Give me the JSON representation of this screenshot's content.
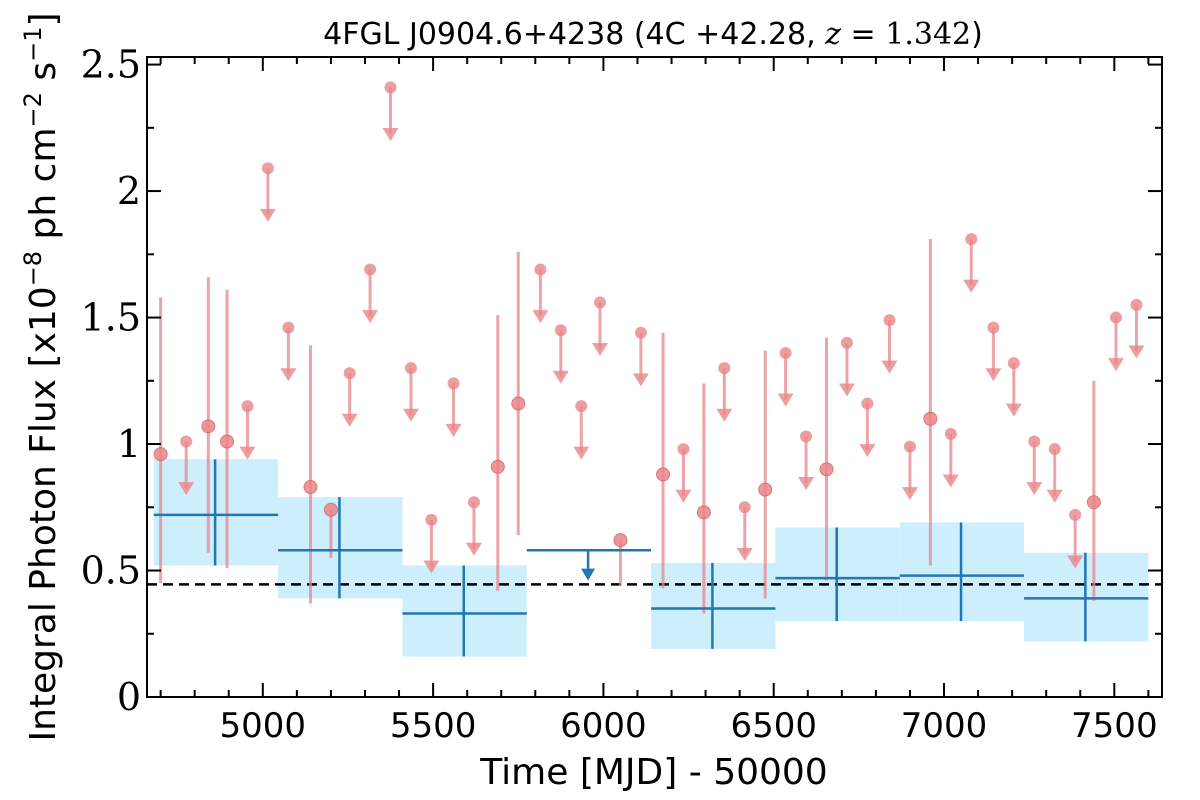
{
  "chart_data": {
    "type": "scatter",
    "title": "4FGL J0904.6+4238 (4C +42.28, z = 1.342)",
    "xlabel": "Time [MJD] - 50000",
    "ylabel": "Integral Photon Flux [x10^-8 ph cm^-2 s^-1]",
    "xlim": [
      4660,
      7640
    ],
    "ylim": [
      0,
      2.53
    ],
    "x_ticks": [
      5000,
      5500,
      6000,
      6500,
      7000,
      7500
    ],
    "y_ticks": [
      0,
      0.5,
      1,
      1.5,
      2,
      2.5
    ],
    "y_tick_labels": [
      "0",
      "0.5",
      "1",
      "1.5",
      "2",
      "2.5"
    ],
    "grid": false,
    "reference_line": {
      "y": 0.445,
      "style": "dashed",
      "color": "#000000"
    },
    "colors": {
      "short_bins": "#e8868a",
      "long_bins": "#1f77b4",
      "long_bins_band": "#cdeefc"
    },
    "series": [
      {
        "kind": "short-bin detections",
        "points": [
          {
            "x": 4700,
            "y": 0.96,
            "lo": 0.45,
            "hi": 1.58
          },
          {
            "x": 4840,
            "y": 1.07,
            "lo": 0.57,
            "hi": 1.66
          },
          {
            "x": 4895,
            "y": 1.01,
            "lo": 0.51,
            "hi": 1.61
          },
          {
            "x": 5140,
            "y": 0.83,
            "lo": 0.37,
            "hi": 1.39
          },
          {
            "x": 5200,
            "y": 0.74,
            "lo": 0.55,
            "hi": 0.74
          },
          {
            "x": 5690,
            "y": 0.91,
            "lo": 0.42,
            "hi": 1.51
          },
          {
            "x": 5750,
            "y": 1.16,
            "lo": 0.64,
            "hi": 1.76
          },
          {
            "x": 6050,
            "y": 0.62,
            "lo": 0.44,
            "hi": 0.62
          },
          {
            "x": 6175,
            "y": 0.88,
            "lo": 0.43,
            "hi": 1.44
          },
          {
            "x": 6295,
            "y": 0.73,
            "lo": 0.33,
            "hi": 1.24
          },
          {
            "x": 6475,
            "y": 0.82,
            "lo": 0.39,
            "hi": 1.37
          },
          {
            "x": 6655,
            "y": 0.9,
            "lo": 0.46,
            "hi": 1.42
          },
          {
            "x": 6960,
            "y": 1.1,
            "lo": 0.52,
            "hi": 1.81
          },
          {
            "x": 7440,
            "y": 0.77,
            "lo": 0.38,
            "hi": 1.25
          }
        ]
      },
      {
        "kind": "short-bin upper limits",
        "points": [
          {
            "x": 4775,
            "y": 1.01
          },
          {
            "x": 4955,
            "y": 1.15
          },
          {
            "x": 5015,
            "y": 2.09
          },
          {
            "x": 5075,
            "y": 1.46
          },
          {
            "x": 5255,
            "y": 1.28
          },
          {
            "x": 5315,
            "y": 1.69
          },
          {
            "x": 5375,
            "y": 2.41
          },
          {
            "x": 5435,
            "y": 1.3
          },
          {
            "x": 5495,
            "y": 0.7
          },
          {
            "x": 5560,
            "y": 1.24
          },
          {
            "x": 5620,
            "y": 0.77
          },
          {
            "x": 5815,
            "y": 1.69
          },
          {
            "x": 5875,
            "y": 1.45
          },
          {
            "x": 5935,
            "y": 1.15
          },
          {
            "x": 5990,
            "y": 1.56
          },
          {
            "x": 6110,
            "y": 1.44
          },
          {
            "x": 6235,
            "y": 0.98
          },
          {
            "x": 6355,
            "y": 1.3
          },
          {
            "x": 6415,
            "y": 0.75
          },
          {
            "x": 6535,
            "y": 1.36
          },
          {
            "x": 6595,
            "y": 1.03
          },
          {
            "x": 6715,
            "y": 1.4
          },
          {
            "x": 6775,
            "y": 1.16
          },
          {
            "x": 6840,
            "y": 1.49
          },
          {
            "x": 6900,
            "y": 0.99
          },
          {
            "x": 7020,
            "y": 1.04
          },
          {
            "x": 7080,
            "y": 1.81
          },
          {
            "x": 7145,
            "y": 1.46
          },
          {
            "x": 7205,
            "y": 1.32
          },
          {
            "x": 7265,
            "y": 1.01
          },
          {
            "x": 7325,
            "y": 0.98
          },
          {
            "x": 7385,
            "y": 0.72
          },
          {
            "x": 7505,
            "y": 1.5
          },
          {
            "x": 7565,
            "y": 1.55
          }
        ]
      },
      {
        "kind": "long-bin detections",
        "points": [
          {
            "x0": 4680,
            "x1": 5045,
            "xc": 4860,
            "y": 0.72,
            "lo": 0.52,
            "hi": 0.94
          },
          {
            "x0": 5045,
            "x1": 5410,
            "xc": 5225,
            "y": 0.58,
            "lo": 0.39,
            "hi": 0.79
          },
          {
            "x0": 5410,
            "x1": 5775,
            "xc": 5590,
            "y": 0.33,
            "lo": 0.16,
            "hi": 0.52
          },
          {
            "x0": 6140,
            "x1": 6505,
            "xc": 6320,
            "y": 0.35,
            "lo": 0.19,
            "hi": 0.53
          },
          {
            "x0": 6505,
            "x1": 6870,
            "xc": 6685,
            "y": 0.47,
            "lo": 0.3,
            "hi": 0.67
          },
          {
            "x0": 6870,
            "x1": 7235,
            "xc": 7050,
            "y": 0.48,
            "lo": 0.3,
            "hi": 0.69
          },
          {
            "x0": 7235,
            "x1": 7600,
            "xc": 7415,
            "y": 0.39,
            "lo": 0.22,
            "hi": 0.57
          }
        ]
      },
      {
        "kind": "long-bin upper limits",
        "points": [
          {
            "x0": 5775,
            "x1": 6140,
            "xc": 5955,
            "y": 0.58
          }
        ]
      }
    ]
  }
}
